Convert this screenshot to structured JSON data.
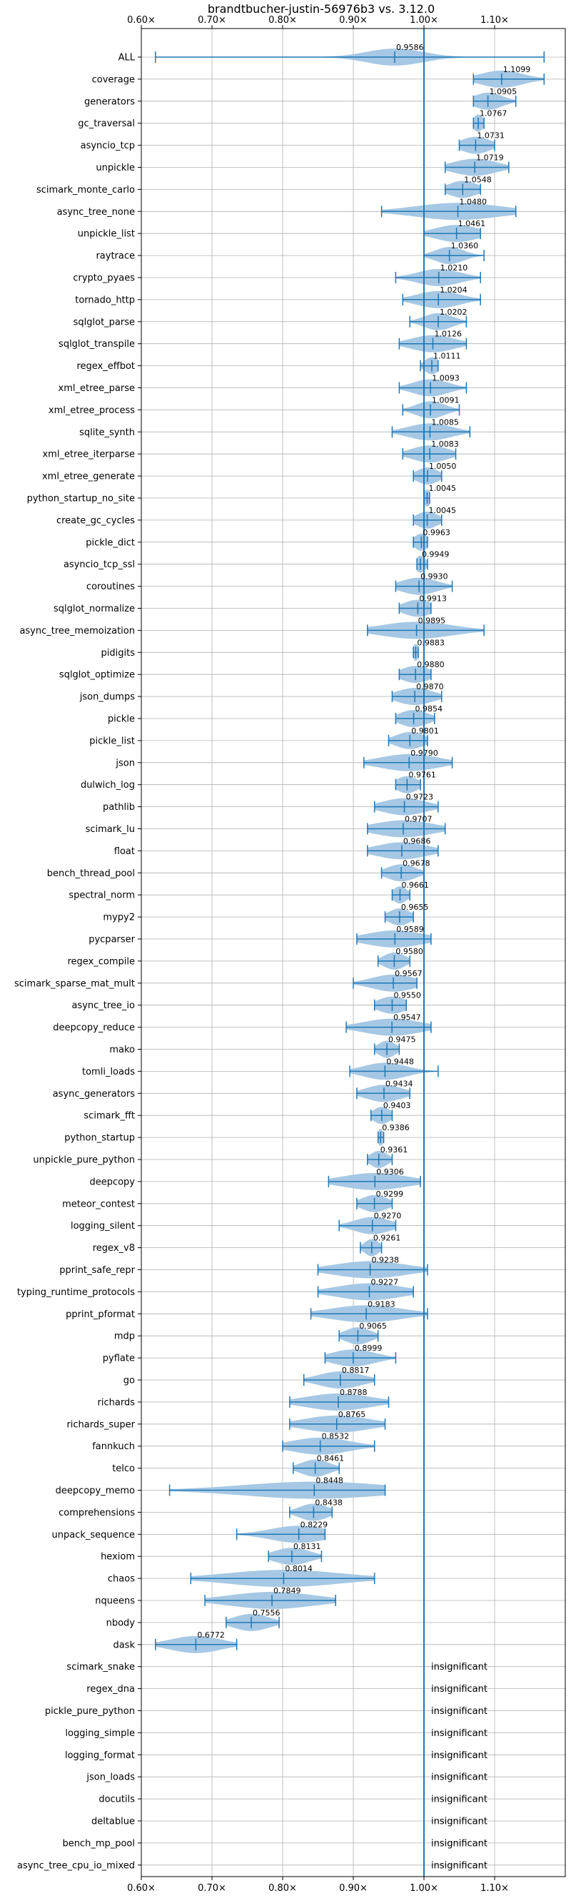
{
  "chart_data": {
    "type": "violin",
    "title": "brandtbucher-justin-56976b3 vs. 3.12.0",
    "xlim": [
      0.6,
      1.2
    ],
    "x_ticks": [
      {
        "value": 0.6,
        "label": "0.60×"
      },
      {
        "value": 0.7,
        "label": "0.70×"
      },
      {
        "value": 0.8,
        "label": "0.80×"
      },
      {
        "value": 0.9,
        "label": "0.90×"
      },
      {
        "value": 1.0,
        "label": "1.00×"
      },
      {
        "value": 1.1,
        "label": "1.10×"
      }
    ],
    "grid": true,
    "reference_line": 1.0,
    "colors": {
      "violin": "#a6c8e4",
      "line": "#1f77b4",
      "grid": "#b0b0b0"
    },
    "insignificant_text": "insignificant",
    "benchmarks": [
      {
        "name": "ALL",
        "value": 0.9586,
        "label": "0.9586",
        "min": 0.62,
        "max": 1.17,
        "spread": 0.04
      },
      {
        "name": "coverage",
        "value": 1.1099,
        "label": "1.1099",
        "min": 1.07,
        "max": 1.17,
        "spread": 0.03
      },
      {
        "name": "generators",
        "value": 1.0905,
        "label": "1.0905",
        "min": 1.07,
        "max": 1.13,
        "spread": 0.02
      },
      {
        "name": "gc_traversal",
        "value": 1.0767,
        "label": "1.0767",
        "min": 1.07,
        "max": 1.085,
        "spread": 0.007
      },
      {
        "name": "asyncio_tcp",
        "value": 1.0731,
        "label": "1.0731",
        "min": 1.05,
        "max": 1.1,
        "spread": 0.02
      },
      {
        "name": "unpickle",
        "value": 1.0719,
        "label": "1.0719",
        "min": 1.03,
        "max": 1.12,
        "spread": 0.03
      },
      {
        "name": "scimark_monte_carlo",
        "value": 1.0548,
        "label": "1.0548",
        "min": 1.03,
        "max": 1.08,
        "spread": 0.02
      },
      {
        "name": "async_tree_none",
        "value": 1.048,
        "label": "1.0480",
        "min": 0.94,
        "max": 1.13,
        "spread": 0.06
      },
      {
        "name": "unpickle_list",
        "value": 1.0461,
        "label": "1.0461",
        "min": 1.0,
        "max": 1.08,
        "spread": 0.03
      },
      {
        "name": "raytrace",
        "value": 1.036,
        "label": "1.0360",
        "min": 1.0,
        "max": 1.085,
        "spread": 0.02
      },
      {
        "name": "crypto_pyaes",
        "value": 1.021,
        "label": "1.0210",
        "min": 0.96,
        "max": 1.08,
        "spread": 0.03
      },
      {
        "name": "tornado_http",
        "value": 1.0204,
        "label": "1.0204",
        "min": 0.97,
        "max": 1.08,
        "spread": 0.03
      },
      {
        "name": "sqlglot_parse",
        "value": 1.0202,
        "label": "1.0202",
        "min": 0.98,
        "max": 1.06,
        "spread": 0.02
      },
      {
        "name": "sqlglot_transpile",
        "value": 1.0126,
        "label": "1.0126",
        "min": 0.965,
        "max": 1.06,
        "spread": 0.03
      },
      {
        "name": "regex_effbot",
        "value": 1.0111,
        "label": "1.0111",
        "min": 0.995,
        "max": 1.02,
        "spread": 0.01
      },
      {
        "name": "xml_etree_parse",
        "value": 1.0093,
        "label": "1.0093",
        "min": 0.965,
        "max": 1.06,
        "spread": 0.025
      },
      {
        "name": "xml_etree_process",
        "value": 1.0091,
        "label": "1.0091",
        "min": 0.97,
        "max": 1.05,
        "spread": 0.02
      },
      {
        "name": "sqlite_synth",
        "value": 1.0085,
        "label": "1.0085",
        "min": 0.955,
        "max": 1.065,
        "spread": 0.03
      },
      {
        "name": "xml_etree_iterparse",
        "value": 1.0083,
        "label": "1.0083",
        "min": 0.97,
        "max": 1.045,
        "spread": 0.025
      },
      {
        "name": "xml_etree_generate",
        "value": 1.005,
        "label": "1.0050",
        "min": 0.985,
        "max": 1.025,
        "spread": 0.015
      },
      {
        "name": "python_startup_no_site",
        "value": 1.0045,
        "label": "1.0045",
        "min": 1.0,
        "max": 1.008,
        "spread": 0.005
      },
      {
        "name": "create_gc_cycles",
        "value": 1.0045,
        "label": "1.0045",
        "min": 0.985,
        "max": 1.025,
        "spread": 0.015
      },
      {
        "name": "pickle_dict",
        "value": 0.9963,
        "label": "0.9963",
        "min": 0.985,
        "max": 1.005,
        "spread": 0.01
      },
      {
        "name": "asyncio_tcp_ssl",
        "value": 0.9949,
        "label": "0.9949",
        "min": 0.99,
        "max": 1.005,
        "spread": 0.007
      },
      {
        "name": "coroutines",
        "value": 0.993,
        "label": "0.9930",
        "min": 0.96,
        "max": 1.04,
        "spread": 0.025
      },
      {
        "name": "sqlglot_normalize",
        "value": 0.9913,
        "label": "0.9913",
        "min": 0.965,
        "max": 1.01,
        "spread": 0.02
      },
      {
        "name": "async_tree_memoization",
        "value": 0.9895,
        "label": "0.9895",
        "min": 0.92,
        "max": 1.085,
        "spread": 0.05
      },
      {
        "name": "pidigits",
        "value": 0.9883,
        "label": "0.9883",
        "min": 0.985,
        "max": 0.992,
        "spread": 0.004
      },
      {
        "name": "sqlglot_optimize",
        "value": 0.988,
        "label": "0.9880",
        "min": 0.965,
        "max": 1.01,
        "spread": 0.02
      },
      {
        "name": "json_dumps",
        "value": 0.987,
        "label": "0.9870",
        "min": 0.955,
        "max": 1.025,
        "spread": 0.025
      },
      {
        "name": "pickle",
        "value": 0.9854,
        "label": "0.9854",
        "min": 0.96,
        "max": 1.015,
        "spread": 0.02
      },
      {
        "name": "pickle_list",
        "value": 0.9801,
        "label": "0.9801",
        "min": 0.95,
        "max": 1.005,
        "spread": 0.02
      },
      {
        "name": "json",
        "value": 0.979,
        "label": "0.9790",
        "min": 0.915,
        "max": 1.04,
        "spread": 0.04
      },
      {
        "name": "dulwich_log",
        "value": 0.9761,
        "label": "0.9761",
        "min": 0.96,
        "max": 0.995,
        "spread": 0.015
      },
      {
        "name": "pathlib",
        "value": 0.9723,
        "label": "0.9723",
        "min": 0.93,
        "max": 1.02,
        "spread": 0.03
      },
      {
        "name": "scimark_lu",
        "value": 0.9707,
        "label": "0.9707",
        "min": 0.92,
        "max": 1.03,
        "spread": 0.04
      },
      {
        "name": "float",
        "value": 0.9686,
        "label": "0.9686",
        "min": 0.92,
        "max": 1.02,
        "spread": 0.035
      },
      {
        "name": "bench_thread_pool",
        "value": 0.9678,
        "label": "0.9678",
        "min": 0.94,
        "max": 1.0,
        "spread": 0.02
      },
      {
        "name": "spectral_norm",
        "value": 0.9661,
        "label": "0.9661",
        "min": 0.955,
        "max": 0.98,
        "spread": 0.01
      },
      {
        "name": "mypy2",
        "value": 0.9655,
        "label": "0.9655",
        "min": 0.945,
        "max": 0.985,
        "spread": 0.015
      },
      {
        "name": "pycparser",
        "value": 0.9589,
        "label": "0.9589",
        "min": 0.905,
        "max": 1.01,
        "spread": 0.04
      },
      {
        "name": "regex_compile",
        "value": 0.958,
        "label": "0.9580",
        "min": 0.935,
        "max": 0.98,
        "spread": 0.015
      },
      {
        "name": "scimark_sparse_mat_mult",
        "value": 0.9567,
        "label": "0.9567",
        "min": 0.9,
        "max": 0.99,
        "spread": 0.03
      },
      {
        "name": "async_tree_io",
        "value": 0.955,
        "label": "0.9550",
        "min": 0.93,
        "max": 0.975,
        "spread": 0.02
      },
      {
        "name": "deepcopy_reduce",
        "value": 0.9547,
        "label": "0.9547",
        "min": 0.89,
        "max": 1.01,
        "spread": 0.04
      },
      {
        "name": "mako",
        "value": 0.9475,
        "label": "0.9475",
        "min": 0.93,
        "max": 0.965,
        "spread": 0.012
      },
      {
        "name": "tomli_loads",
        "value": 0.9448,
        "label": "0.9448",
        "min": 0.895,
        "max": 1.02,
        "spread": 0.03
      },
      {
        "name": "async_generators",
        "value": 0.9434,
        "label": "0.9434",
        "min": 0.905,
        "max": 0.98,
        "spread": 0.025
      },
      {
        "name": "scimark_fft",
        "value": 0.9403,
        "label": "0.9403",
        "min": 0.925,
        "max": 0.955,
        "spread": 0.012
      },
      {
        "name": "python_startup",
        "value": 0.9386,
        "label": "0.9386",
        "min": 0.935,
        "max": 0.943,
        "spread": 0.004
      },
      {
        "name": "unpickle_pure_python",
        "value": 0.9361,
        "label": "0.9361",
        "min": 0.92,
        "max": 0.955,
        "spread": 0.012
      },
      {
        "name": "deepcopy",
        "value": 0.9306,
        "label": "0.9306",
        "min": 0.865,
        "max": 0.995,
        "spread": 0.045
      },
      {
        "name": "meteor_contest",
        "value": 0.9299,
        "label": "0.9299",
        "min": 0.905,
        "max": 0.955,
        "spread": 0.018
      },
      {
        "name": "logging_silent",
        "value": 0.927,
        "label": "0.9270",
        "min": 0.88,
        "max": 0.96,
        "spread": 0.025
      },
      {
        "name": "regex_v8",
        "value": 0.9261,
        "label": "0.9261",
        "min": 0.91,
        "max": 0.94,
        "spread": 0.01
      },
      {
        "name": "pprint_safe_repr",
        "value": 0.9238,
        "label": "0.9238",
        "min": 0.85,
        "max": 1.005,
        "spread": 0.05
      },
      {
        "name": "typing_runtime_protocols",
        "value": 0.9227,
        "label": "0.9227",
        "min": 0.85,
        "max": 0.985,
        "spread": 0.045
      },
      {
        "name": "pprint_pformat",
        "value": 0.9183,
        "label": "0.9183",
        "min": 0.84,
        "max": 1.005,
        "spread": 0.05
      },
      {
        "name": "mdp",
        "value": 0.9065,
        "label": "0.9065",
        "min": 0.88,
        "max": 0.935,
        "spread": 0.018
      },
      {
        "name": "pyflate",
        "value": 0.8999,
        "label": "0.8999",
        "min": 0.86,
        "max": 0.96,
        "spread": 0.03
      },
      {
        "name": "go",
        "value": 0.8817,
        "label": "0.8817",
        "min": 0.83,
        "max": 0.93,
        "spread": 0.03
      },
      {
        "name": "richards",
        "value": 0.8788,
        "label": "0.8788",
        "min": 0.81,
        "max": 0.95,
        "spread": 0.045
      },
      {
        "name": "richards_super",
        "value": 0.8765,
        "label": "0.8765",
        "min": 0.81,
        "max": 0.945,
        "spread": 0.045
      },
      {
        "name": "fannkuch",
        "value": 0.8532,
        "label": "0.8532",
        "min": 0.8,
        "max": 0.93,
        "spread": 0.04
      },
      {
        "name": "telco",
        "value": 0.8461,
        "label": "0.8461",
        "min": 0.815,
        "max": 0.88,
        "spread": 0.02
      },
      {
        "name": "deepcopy_memo",
        "value": 0.8448,
        "label": "0.8448",
        "min": 0.64,
        "max": 0.945,
        "spread": 0.1
      },
      {
        "name": "comprehensions",
        "value": 0.8438,
        "label": "0.8438",
        "min": 0.81,
        "max": 0.87,
        "spread": 0.02
      },
      {
        "name": "unpack_sequence",
        "value": 0.8229,
        "label": "0.8229",
        "min": 0.735,
        "max": 0.86,
        "spread": 0.04
      },
      {
        "name": "hexiom",
        "value": 0.8131,
        "label": "0.8131",
        "min": 0.78,
        "max": 0.855,
        "spread": 0.025
      },
      {
        "name": "chaos",
        "value": 0.8014,
        "label": "0.8014",
        "min": 0.67,
        "max": 0.93,
        "spread": 0.08
      },
      {
        "name": "nqueens",
        "value": 0.7849,
        "label": "0.7849",
        "min": 0.69,
        "max": 0.875,
        "spread": 0.06
      },
      {
        "name": "nbody",
        "value": 0.7556,
        "label": "0.7556",
        "min": 0.72,
        "max": 0.795,
        "spread": 0.025
      },
      {
        "name": "dask",
        "value": 0.6772,
        "label": "0.6772",
        "min": 0.62,
        "max": 0.735,
        "spread": 0.035
      },
      {
        "name": "scimark_snake",
        "insignificant": true
      },
      {
        "name": "regex_dna",
        "insignificant": true
      },
      {
        "name": "pickle_pure_python",
        "insignificant": true
      },
      {
        "name": "logging_simple",
        "insignificant": true
      },
      {
        "name": "logging_format",
        "insignificant": true
      },
      {
        "name": "json_loads",
        "insignificant": true
      },
      {
        "name": "docutils",
        "insignificant": true
      },
      {
        "name": "deltablue",
        "insignificant": true
      },
      {
        "name": "bench_mp_pool",
        "insignificant": true
      },
      {
        "name": "async_tree_cpu_io_mixed",
        "insignificant": true
      }
    ]
  }
}
